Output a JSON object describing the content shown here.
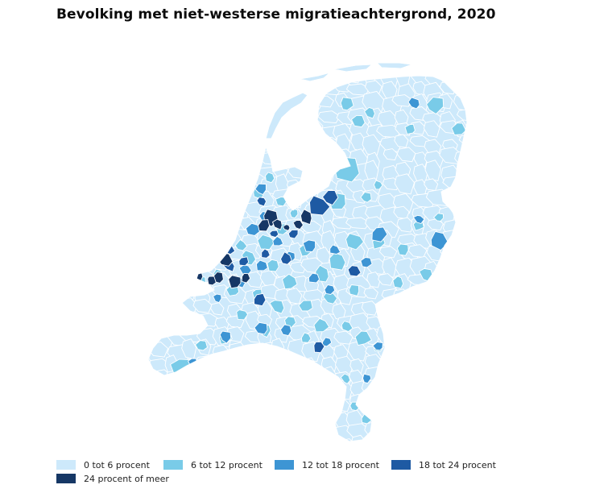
{
  "title": "Bevolking met niet-westerse migratieachtergrond, 2020",
  "colors": {
    "class_0_6": "#cde9fb",
    "class_6_12": "#79cbe8",
    "class_12_18": "#3d95d4",
    "class_18_24": "#1e5aa3",
    "class_24_plus": "#163765",
    "border": "#ffffff"
  },
  "legend": {
    "items": [
      {
        "label": "0 tot 6 procent",
        "color": "#cde9fb"
      },
      {
        "label": "6 tot 12 procent",
        "color": "#79cbe8"
      },
      {
        "label": "12 tot 18 procent",
        "color": "#3d95d4"
      },
      {
        "label": "18 tot 24 procent",
        "color": "#1e5aa3"
      },
      {
        "label": "24 procent of meer",
        "color": "#163765"
      }
    ]
  }
}
